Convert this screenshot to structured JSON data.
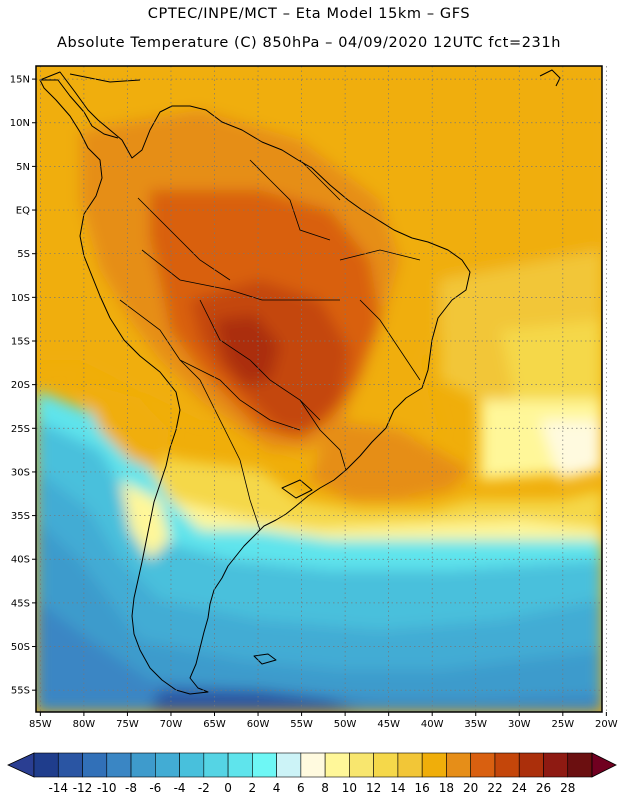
{
  "header": {
    "line1": "CPTEC/INPE/MCT –  Eta Model 15km – GFS",
    "line2": "Absolute Temperature (C) 850hPa – 04/09/2020 12UTC fct=231h"
  },
  "axes": {
    "lat_labels": [
      "15N",
      "10N",
      "5N",
      "EQ",
      "5S",
      "10S",
      "15S",
      "20S",
      "25S",
      "30S",
      "35S",
      "40S",
      "45S",
      "50S",
      "55S"
    ],
    "lat_values": [
      15,
      10,
      5,
      0,
      -5,
      -10,
      -15,
      -20,
      -25,
      -30,
      -35,
      -40,
      -45,
      -50,
      -55
    ],
    "lon_labels": [
      "85W",
      "80W",
      "75W",
      "70W",
      "65W",
      "60W",
      "55W",
      "50W",
      "45W",
      "40W",
      "35W",
      "30W",
      "25W",
      "20W"
    ],
    "lon_values": [
      -85,
      -80,
      -75,
      -70,
      -65,
      -60,
      -55,
      -50,
      -45,
      -40,
      -35,
      -30,
      -25,
      -20
    ],
    "lat_range": [
      -57.5,
      16.5
    ],
    "lon_range": [
      -85.5,
      -20.5
    ]
  },
  "colorbar": {
    "labels": [
      "-14",
      "-12",
      "-10",
      "-8",
      "-6",
      "-4",
      "-2",
      "0",
      "2",
      "4",
      "6",
      "8",
      "10",
      "12",
      "14",
      "16",
      "18",
      "20",
      "22",
      "24",
      "26",
      "28"
    ],
    "colors": [
      "#1f3d8c",
      "#2a55a3",
      "#3170b8",
      "#3a86c4",
      "#3e9bcc",
      "#42acd4",
      "#48c0dc",
      "#55d4e4",
      "#5fe4ec",
      "#6ef7f5",
      "#ccf3f7",
      "#fffadf",
      "#fff799",
      "#f8e66e",
      "#f5d84a",
      "#f2c637",
      "#f0ae0a",
      "#e68e18",
      "#d96010",
      "#c4460a",
      "#ab2f0b",
      "#8e1a12",
      "#6b0f10"
    ],
    "under_color": "#2a3e92",
    "over_color": "#700020"
  }
}
